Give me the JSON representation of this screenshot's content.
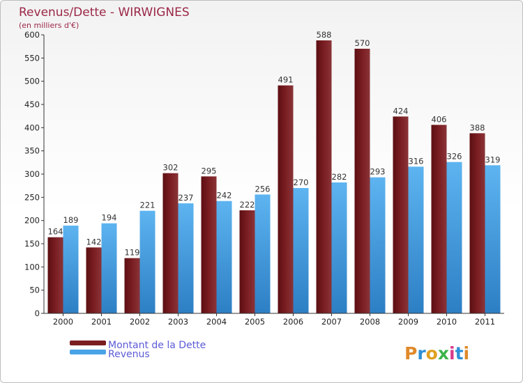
{
  "chart_data": {
    "type": "bar",
    "title": "Revenus/Dette - WIRWIGNES",
    "subtitle": "(en milliers d'€)",
    "categories": [
      "2000",
      "2001",
      "2002",
      "2003",
      "2004",
      "2005",
      "2006",
      "2007",
      "2008",
      "2009",
      "2010",
      "2011"
    ],
    "series": [
      {
        "name": "Montant de la Dette",
        "color": "#7a1e22",
        "values": [
          164,
          142,
          119,
          302,
          295,
          222,
          491,
          588,
          570,
          424,
          406,
          388
        ]
      },
      {
        "name": "Revenus",
        "color": "#4aa3e6",
        "values": [
          189,
          194,
          221,
          237,
          242,
          256,
          270,
          282,
          293,
          316,
          326,
          319
        ]
      }
    ],
    "ylim": [
      0,
      600
    ],
    "yticks": [
      0,
      50,
      100,
      150,
      200,
      250,
      300,
      350,
      400,
      450,
      500,
      550,
      600
    ],
    "grid": false,
    "legend_position": "bottom-left"
  },
  "logo": {
    "text": "Proxiti"
  }
}
